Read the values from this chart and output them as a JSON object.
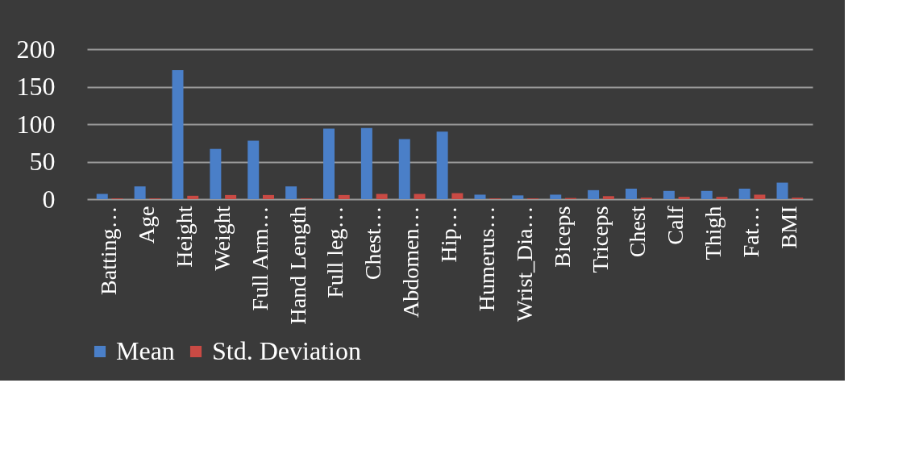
{
  "chart_data": {
    "type": "bar",
    "categories": [
      "Batting…",
      "Age",
      "Height",
      "Weight",
      "Full Arm…",
      "Hand Length",
      "Full leg…",
      "Chest…",
      "Abdomen…",
      "Hip…",
      "Humerus…",
      "Wrist_Dia…",
      "Biceps",
      "Triceps",
      "Chest",
      "Calf",
      "Thigh",
      "Fat…",
      "BMI"
    ],
    "series": [
      {
        "name": "Mean",
        "color": "#4a7fc8",
        "values": [
          7,
          17,
          172,
          67,
          78,
          17,
          94,
          95,
          80,
          90,
          6,
          5,
          6,
          12,
          14,
          11,
          11,
          14,
          22
        ]
      },
      {
        "name": "Std. Deviation",
        "color": "#c94a44",
        "values": [
          1,
          1,
          4.5,
          5.5,
          5.5,
          1,
          5.5,
          7,
          7,
          8,
          1,
          1,
          1.5,
          4,
          2,
          3,
          3,
          6,
          2
        ]
      }
    ],
    "ylim": [
      0,
      200
    ],
    "yticks": [
      0,
      50,
      100,
      150,
      200
    ],
    "grid": "y",
    "legend": "bottom"
  }
}
